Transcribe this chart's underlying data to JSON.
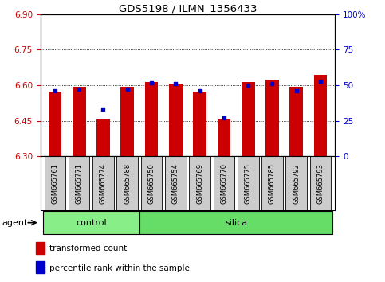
{
  "title": "GDS5198 / ILMN_1356433",
  "samples": [
    "GSM665761",
    "GSM665771",
    "GSM665774",
    "GSM665788",
    "GSM665750",
    "GSM665754",
    "GSM665769",
    "GSM665770",
    "GSM665775",
    "GSM665785",
    "GSM665792",
    "GSM665793"
  ],
  "groups": [
    "control",
    "control",
    "control",
    "control",
    "silica",
    "silica",
    "silica",
    "silica",
    "silica",
    "silica",
    "silica",
    "silica"
  ],
  "transformed_count": [
    6.575,
    6.595,
    6.455,
    6.595,
    6.615,
    6.605,
    6.575,
    6.455,
    6.615,
    6.625,
    6.595,
    6.645
  ],
  "percentile_rank": [
    46,
    47,
    33,
    47,
    52,
    51,
    46,
    27,
    50,
    51,
    46,
    53
  ],
  "ylim_left": [
    6.3,
    6.9
  ],
  "ylim_right": [
    0,
    100
  ],
  "yticks_left": [
    6.3,
    6.45,
    6.6,
    6.75,
    6.9
  ],
  "yticks_right": [
    0,
    25,
    50,
    75,
    100
  ],
  "ybase": 6.3,
  "bar_color": "#cc0000",
  "dot_color": "#0000cc",
  "control_color": "#88ee88",
  "silica_color": "#66dd66",
  "group_label": "agent",
  "legend_transformed": "transformed count",
  "legend_percentile": "percentile rank within the sample",
  "tick_color_left": "#cc0000",
  "tick_color_right": "#0000cc",
  "label_bg": "#cccccc"
}
